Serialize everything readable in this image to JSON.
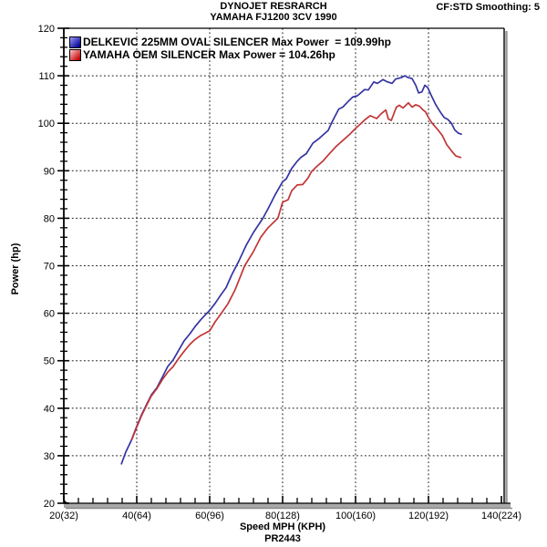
{
  "header": {
    "title_line1": "DYNOJET RESRARCH",
    "title_line2": "YAMAHA FJ1200 3CV 1990",
    "smoothing_label": "CF:STD Smoothing: 5"
  },
  "chart_data": {
    "type": "line",
    "title": "DYNOJET RESRARCH — YAMAHA FJ1200 3CV 1990",
    "xlabel": "Speed MPH (KPH)",
    "ylabel": "Power (hp)",
    "footer_code": "PR2443",
    "xlim": [
      20,
      140
    ],
    "ylim": [
      20,
      120
    ],
    "grid": "dotted",
    "legend_position": "top-left-inside",
    "x_minor_step": 4,
    "y_minor_step": 2,
    "x_ticks": [
      {
        "v": 20,
        "label": "20(32)"
      },
      {
        "v": 40,
        "label": "40(64)"
      },
      {
        "v": 60,
        "label": "60(96)"
      },
      {
        "v": 80,
        "label": "80(128)"
      },
      {
        "v": 100,
        "label": "100(160)"
      },
      {
        "v": 120,
        "label": "120(192)"
      },
      {
        "v": 140,
        "label": "140(224)"
      }
    ],
    "y_ticks": [
      {
        "v": 120,
        "label": "120"
      },
      {
        "v": 110,
        "label": "110"
      },
      {
        "v": 100,
        "label": "100"
      },
      {
        "v": 90,
        "label": "90"
      },
      {
        "v": 80,
        "label": "80"
      },
      {
        "v": 70,
        "label": "70"
      },
      {
        "v": 60,
        "label": "60"
      },
      {
        "v": 50,
        "label": "50"
      },
      {
        "v": 40,
        "label": "40"
      },
      {
        "v": 30,
        "label": "30"
      },
      {
        "v": 20,
        "label": "20"
      }
    ],
    "series": [
      {
        "name": "DELKEVIC 225MM OVAL SILENCER Max Power  = 109.99hp",
        "max_power_hp": 109.99,
        "color": "#3434A4",
        "swatch_gradient": [
          "#9999ff",
          "#00008c"
        ],
        "points_mph_hp": [
          [
            35.8,
            28.3
          ],
          [
            37,
            30.8
          ],
          [
            38.5,
            33.2
          ],
          [
            40,
            36.2
          ],
          [
            41.3,
            38.6
          ],
          [
            42.5,
            40.5
          ],
          [
            44,
            42.8
          ],
          [
            45.5,
            44.3
          ],
          [
            47,
            46.5
          ],
          [
            48.5,
            48.8
          ],
          [
            50,
            50.2
          ],
          [
            51.5,
            52.2
          ],
          [
            53,
            54.2
          ],
          [
            54.5,
            55.6
          ],
          [
            56,
            57.2
          ],
          [
            57.5,
            58.6
          ],
          [
            59,
            59.8
          ],
          [
            60,
            60.6
          ],
          [
            61.5,
            62.1
          ],
          [
            63,
            63.8
          ],
          [
            64.5,
            65.4
          ],
          [
            66,
            68
          ],
          [
            68,
            71
          ],
          [
            70,
            74.3
          ],
          [
            72,
            77
          ],
          [
            74.6,
            80
          ],
          [
            76,
            82
          ],
          [
            78,
            85
          ],
          [
            80,
            87.7
          ],
          [
            81,
            88.3
          ],
          [
            82.5,
            90.5
          ],
          [
            84,
            92
          ],
          [
            85,
            92.8
          ],
          [
            86.5,
            93.6
          ],
          [
            88.3,
            95.8
          ],
          [
            90,
            96.8
          ],
          [
            92.5,
            98.5
          ],
          [
            93.5,
            100.2
          ],
          [
            95.4,
            103
          ],
          [
            96.5,
            103.4
          ],
          [
            98,
            104.6
          ],
          [
            99.2,
            105.5
          ],
          [
            100.5,
            105.8
          ],
          [
            102.5,
            107.1
          ],
          [
            103.5,
            107
          ],
          [
            105,
            108.7
          ],
          [
            106,
            108.4
          ],
          [
            107.5,
            109.2
          ],
          [
            108.5,
            108.8
          ],
          [
            110,
            108.4
          ],
          [
            111,
            109.3
          ],
          [
            112.5,
            109.6
          ],
          [
            113.5,
            110
          ],
          [
            114.5,
            109.6
          ],
          [
            115.5,
            109.4
          ],
          [
            116.5,
            108
          ],
          [
            117.3,
            106.4
          ],
          [
            118.2,
            106.6
          ],
          [
            119,
            108
          ],
          [
            119.8,
            107.5
          ],
          [
            120.8,
            105.8
          ],
          [
            122,
            103.9
          ],
          [
            123.3,
            102.3
          ],
          [
            124.3,
            101.2
          ],
          [
            125.3,
            100.8
          ],
          [
            126.3,
            100
          ],
          [
            127.2,
            98.6
          ],
          [
            128.2,
            97.9
          ],
          [
            129,
            97.7
          ]
        ]
      },
      {
        "name": "YAMAHA OEM SILENCER Max Power = 104.26hp",
        "max_power_hp": 104.26,
        "color": "#C23535",
        "swatch_gradient": [
          "#ffc8c8",
          "#c00000"
        ],
        "points_mph_hp": [
          [
            38.7,
            33.5
          ],
          [
            40,
            36
          ],
          [
            41.3,
            38.4
          ],
          [
            42.5,
            40.3
          ],
          [
            44,
            42.6
          ],
          [
            45.5,
            44.1
          ],
          [
            47,
            46
          ],
          [
            48.5,
            47.6
          ],
          [
            50,
            48.8
          ],
          [
            51.5,
            50.5
          ],
          [
            53,
            52
          ],
          [
            54.5,
            53.4
          ],
          [
            56,
            54.5
          ],
          [
            57.5,
            55.3
          ],
          [
            59,
            55.9
          ],
          [
            60,
            56.3
          ],
          [
            61.5,
            58.2
          ],
          [
            63.2,
            60
          ],
          [
            65,
            62
          ],
          [
            67,
            65
          ],
          [
            69.6,
            70
          ],
          [
            72,
            73
          ],
          [
            74,
            76
          ],
          [
            76,
            78
          ],
          [
            78.7,
            80
          ],
          [
            80,
            83.4
          ],
          [
            81.5,
            83.9
          ],
          [
            82.5,
            85.8
          ],
          [
            84,
            87
          ],
          [
            85.5,
            87.1
          ],
          [
            87,
            88.5
          ],
          [
            87.9,
            89.8
          ],
          [
            89.5,
            91
          ],
          [
            91,
            92
          ],
          [
            92.5,
            93.3
          ],
          [
            94.5,
            95
          ],
          [
            96.7,
            96.5
          ],
          [
            98.3,
            97.6
          ],
          [
            100,
            98.9
          ],
          [
            101,
            99.6
          ],
          [
            102.5,
            100.7
          ],
          [
            104,
            101.6
          ],
          [
            105.8,
            101
          ],
          [
            107,
            102
          ],
          [
            108.3,
            102.8
          ],
          [
            109,
            100.9
          ],
          [
            109.8,
            100.6
          ],
          [
            110.5,
            102
          ],
          [
            111.2,
            103.4
          ],
          [
            112,
            103.8
          ],
          [
            113,
            103.2
          ],
          [
            114.5,
            104.3
          ],
          [
            115.5,
            103.4
          ],
          [
            116.5,
            103.9
          ],
          [
            117.5,
            103.6
          ],
          [
            118.5,
            102.8
          ],
          [
            119.2,
            102.4
          ],
          [
            120,
            101.2
          ],
          [
            121,
            100
          ],
          [
            122.5,
            98.7
          ],
          [
            123.8,
            97.4
          ],
          [
            125,
            95.5
          ],
          [
            126.3,
            94.2
          ],
          [
            127.5,
            93.1
          ],
          [
            128.8,
            92.8
          ]
        ]
      }
    ]
  }
}
